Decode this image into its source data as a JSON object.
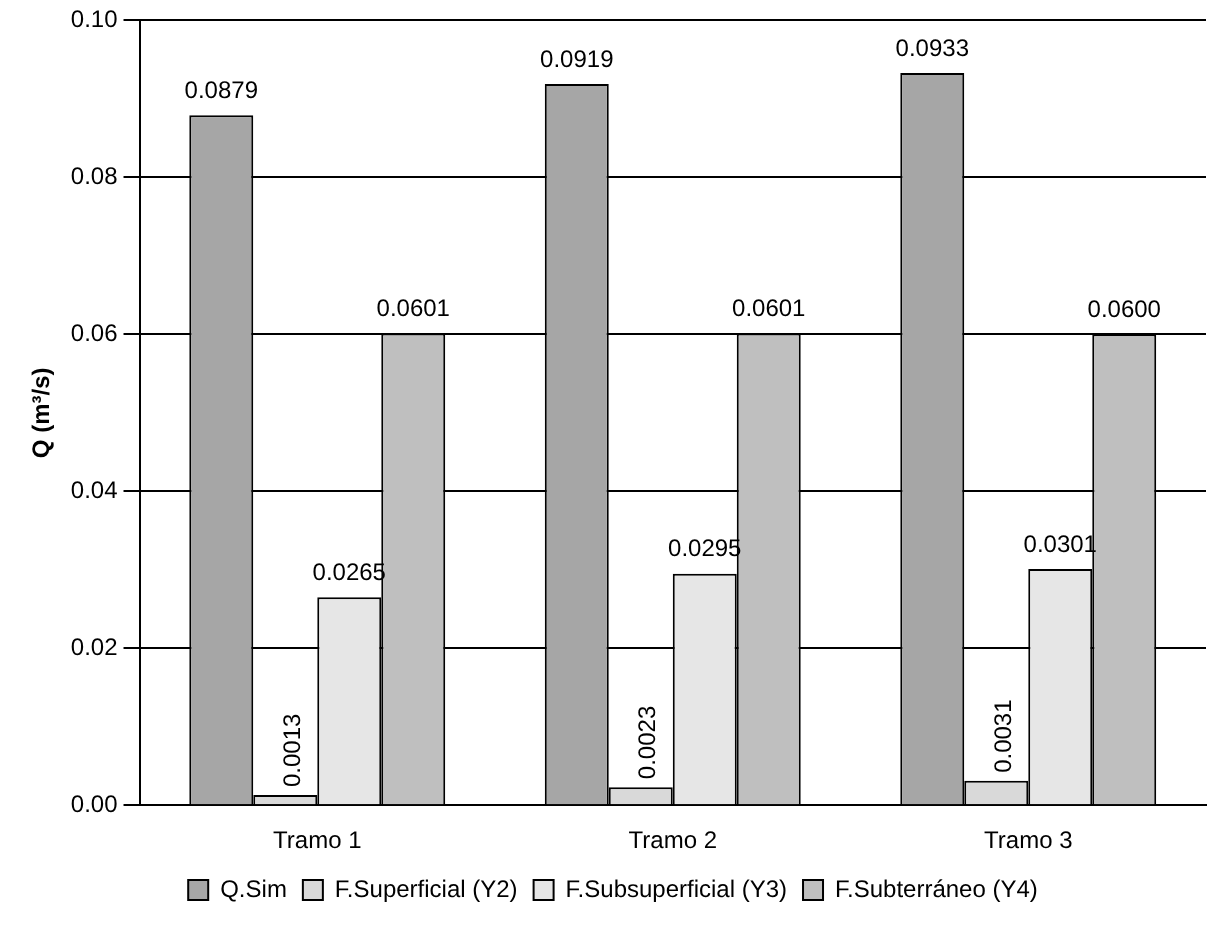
{
  "chart_data": {
    "type": "bar",
    "ylabel": "Q (m³/s)",
    "categories": [
      "Tramo 1",
      "Tramo 2",
      "Tramo 3"
    ],
    "series": [
      {
        "name": "Q.Sim",
        "color": "#a6a6a6",
        "values": [
          0.0879,
          0.0919,
          0.0933
        ],
        "value_labels": [
          "0.0879",
          "0.0919",
          "0.0933"
        ]
      },
      {
        "name": "F.Superficial (Y2)",
        "color": "#d9d9d9",
        "values": [
          0.0013,
          0.0023,
          0.0031
        ],
        "value_labels": [
          "0.0013",
          "0.0023",
          "0.0031"
        ]
      },
      {
        "name": "F.Subsuperficial (Y3)",
        "color": "#e6e6e6",
        "values": [
          0.0265,
          0.0295,
          0.0301
        ],
        "value_labels": [
          "0.0265",
          "0.0295",
          "0.0301"
        ]
      },
      {
        "name": "F.Subterráneo (Y4)",
        "color": "#bfbfbf",
        "values": [
          0.0601,
          0.0601,
          0.06
        ],
        "value_labels": [
          "0.0601",
          "0.0601",
          "0.0600"
        ]
      }
    ],
    "ylim": [
      0,
      0.1
    ],
    "yticks": [
      {
        "value": 0,
        "label": "0.00"
      },
      {
        "value": 0.02,
        "label": "0.02"
      },
      {
        "value": 0.04,
        "label": "0.04"
      },
      {
        "value": 0.06,
        "label": "0.06"
      },
      {
        "value": 0.08,
        "label": "0.08"
      },
      {
        "value": 0.1,
        "label": "0.10"
      }
    ],
    "grid": "y",
    "legend": "bottom"
  }
}
